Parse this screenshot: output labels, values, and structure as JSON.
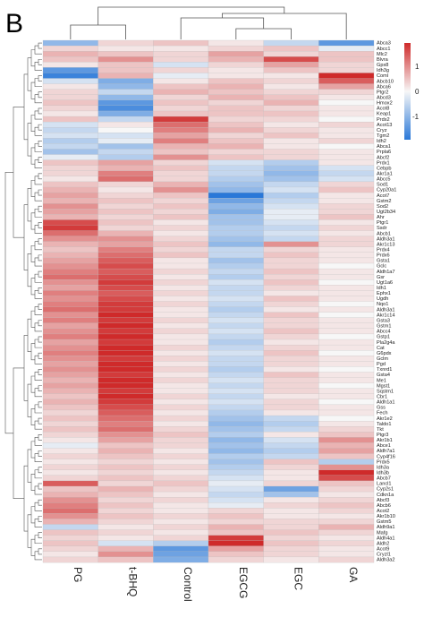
{
  "panel_label": "B",
  "colors": {
    "low": "#2a78d8",
    "mid": "#f7f7f7",
    "high": "#cf2a2a"
  },
  "chart_data": {
    "type": "heatmap",
    "title": "",
    "columns": [
      "PG",
      "t-BHQ",
      "Control",
      "EGCG",
      "EGC",
      "GA"
    ],
    "rows": [
      "Abca3",
      "Abcc1",
      "Mlc2",
      "Blvra",
      "Gpx8",
      "Idh3g",
      "Coml",
      "Abcb10",
      "Abca6",
      "Ptgr2",
      "Abcd3",
      "Hmox2",
      "Acot8",
      "Keap1",
      "Prdx2",
      "Acot13",
      "Cryz",
      "Tgm2",
      "Idh2",
      "Abca1",
      "Prpla6",
      "Abcf2",
      "Prdx1",
      "Cebpb",
      "Akr1a1",
      "Abcc5",
      "Sod1",
      "Cyp20a1",
      "Acot7",
      "Gstm2",
      "Sod2",
      "Ugt2b34",
      "Ahr",
      "Ptgr1",
      "Ssdr",
      "Abcb1",
      "Aldh3a1",
      "Akr1c13",
      "Prdx4",
      "Prdx6",
      "Gsta1",
      "Gclc",
      "Aldh1a7",
      "Gsr",
      "Ugt1a6",
      "Idh1",
      "Ephx1",
      "Ugdh",
      "Nqo1",
      "Aldh3a1",
      "Akr1c14",
      "Gsta3",
      "Gstm1",
      "Abcc4",
      "Gstp1",
      "Pla2g4a",
      "Cat",
      "G6pdx",
      "Gclm",
      "Pgd",
      "Txnrd1",
      "Gsta4",
      "Me1",
      "Mgst1",
      "Sqstm1",
      "Cbr1",
      "Aldh1a1",
      "Gss",
      "Fech",
      "Akr1e2",
      "Taldo1",
      "Tkt",
      "Ptgr3",
      "Akr1b1",
      "Abce1",
      "Aldh7a1",
      "Cyp4f16",
      "Prdx5",
      "Idh3a",
      "Idh3b",
      "Abcb7",
      "Lancl1",
      "Cyp2s1",
      "Cdkn1a",
      "Abcf3",
      "Abcb6",
      "Acot2",
      "Akr1b10",
      "Gstm5",
      "Aldh9a1",
      "Mafg",
      "Aldh4a1",
      "Aldh2",
      "Acot9",
      "Cryzl1",
      "Aldh3a2"
    ],
    "values": [
      [
        -0.6,
        0.2,
        0.3,
        0.1,
        -0.3,
        -0.9
      ],
      [
        0.2,
        0.1,
        0.1,
        0.2,
        0.3,
        -0.1
      ],
      [
        0.4,
        0.3,
        0.2,
        0.5,
        0.2,
        0.3
      ],
      [
        0.3,
        0.6,
        0.2,
        0.4,
        1.0,
        0.3
      ],
      [
        0.1,
        0.3,
        -0.2,
        0.2,
        0.5,
        0.2
      ],
      [
        -0.9,
        0.3,
        0.2,
        0.1,
        0.3,
        0.2
      ],
      [
        -1.1,
        0.4,
        -0.1,
        0.1,
        0.1,
        1.2
      ],
      [
        -0.2,
        -0.7,
        0.1,
        0.3,
        0.2,
        0.9
      ],
      [
        0.1,
        -0.6,
        0.3,
        0.4,
        0.1,
        0.5
      ],
      [
        0.2,
        -0.3,
        0.4,
        0.3,
        0.2,
        0.2
      ],
      [
        0.2,
        -0.6,
        0.2,
        0.4,
        0.3,
        0.1
      ],
      [
        0.3,
        -0.9,
        0.3,
        0.2,
        0.4,
        0.0
      ],
      [
        0.2,
        -1.0,
        0.2,
        0.3,
        0.2,
        0.1
      ],
      [
        0.1,
        -0.7,
        0.3,
        0.3,
        0.3,
        0.1
      ],
      [
        0.3,
        -0.3,
        1.1,
        0.2,
        0.2,
        0.0
      ],
      [
        -0.2,
        0.1,
        0.8,
        0.3,
        0.1,
        0.2
      ],
      [
        -0.3,
        0.0,
        0.7,
        0.4,
        0.2,
        0.1
      ],
      [
        -0.2,
        -0.2,
        0.5,
        0.2,
        0.3,
        0.1
      ],
      [
        -0.4,
        -0.1,
        0.7,
        0.3,
        0.1,
        0.2
      ],
      [
        -0.3,
        -0.5,
        0.4,
        0.4,
        0.1,
        0.0
      ],
      [
        -0.5,
        -0.3,
        0.3,
        0.2,
        0.2,
        0.1
      ],
      [
        -0.1,
        -0.4,
        0.6,
        0.3,
        0.2,
        0.1
      ],
      [
        0.3,
        0.5,
        0.2,
        -0.2,
        -0.4,
        0.1
      ],
      [
        0.2,
        0.4,
        0.3,
        -0.3,
        -0.5,
        -0.2
      ],
      [
        0.2,
        0.7,
        0.2,
        -0.3,
        -0.6,
        -0.3
      ],
      [
        0.1,
        0.8,
        0.2,
        -0.4,
        -0.5,
        -0.2
      ],
      [
        0.3,
        0.2,
        0.4,
        -0.5,
        -0.3,
        0.2
      ],
      [
        0.4,
        0.1,
        0.6,
        -0.6,
        -0.2,
        0.3
      ],
      [
        0.5,
        0.2,
        0.3,
        -1.2,
        -0.4,
        0.1
      ],
      [
        0.4,
        0.3,
        0.2,
        -0.8,
        -0.3,
        0.1
      ],
      [
        0.6,
        0.2,
        0.3,
        -0.6,
        -0.2,
        0.2
      ],
      [
        0.5,
        0.3,
        0.2,
        -0.7,
        -0.1,
        0.2
      ],
      [
        0.4,
        0.2,
        0.3,
        -0.5,
        -0.1,
        0.3
      ],
      [
        1.0,
        0.3,
        0.1,
        -0.5,
        -0.2,
        0.1
      ],
      [
        1.1,
        0.2,
        0.2,
        -0.4,
        -0.3,
        0.2
      ],
      [
        0.8,
        0.4,
        0.1,
        -0.4,
        -0.2,
        0.1
      ],
      [
        0.6,
        0.6,
        0.2,
        -0.5,
        -0.3,
        0.2
      ],
      [
        0.4,
        0.5,
        0.3,
        -0.6,
        0.6,
        0.2
      ],
      [
        0.3,
        0.7,
        0.2,
        -0.3,
        0.2,
        0.1
      ],
      [
        0.4,
        0.8,
        0.3,
        -0.3,
        0.3,
        0.1
      ],
      [
        0.5,
        0.9,
        0.1,
        -0.5,
        0.2,
        0.1
      ],
      [
        0.6,
        1.0,
        0.1,
        -0.4,
        0.2,
        0.0
      ],
      [
        0.7,
        0.9,
        0.2,
        -0.3,
        0.3,
        0.1
      ],
      [
        0.8,
        1.0,
        0.1,
        -0.4,
        0.2,
        0.1
      ],
      [
        0.6,
        1.1,
        0.2,
        -0.2,
        0.3,
        0.0
      ],
      [
        0.5,
        1.0,
        0.1,
        -0.3,
        0.2,
        0.1
      ],
      [
        0.7,
        0.9,
        0.2,
        -0.3,
        0.1,
        0.1
      ],
      [
        0.6,
        1.0,
        0.1,
        -0.2,
        0.3,
        0.1
      ],
      [
        0.7,
        1.1,
        0.2,
        -0.3,
        0.2,
        0.0
      ],
      [
        0.8,
        1.1,
        0.1,
        -0.4,
        0.1,
        0.1
      ],
      [
        0.6,
        1.2,
        0.1,
        -0.3,
        0.3,
        0.0
      ],
      [
        0.7,
        1.1,
        0.2,
        -0.2,
        0.2,
        0.1
      ],
      [
        0.5,
        1.2,
        0.1,
        -0.3,
        0.2,
        0.1
      ],
      [
        0.6,
        1.1,
        0.2,
        -0.2,
        0.3,
        0.1
      ],
      [
        0.7,
        1.2,
        0.1,
        -0.3,
        0.2,
        0.0
      ],
      [
        0.5,
        1.1,
        0.1,
        -0.4,
        0.1,
        0.1
      ],
      [
        0.6,
        1.2,
        0.2,
        -0.3,
        0.2,
        0.1
      ],
      [
        0.7,
        1.2,
        0.1,
        -0.2,
        0.3,
        0.0
      ],
      [
        0.6,
        1.1,
        0.2,
        -0.3,
        0.2,
        0.1
      ],
      [
        0.5,
        1.2,
        0.1,
        -0.3,
        0.2,
        0.1
      ],
      [
        0.6,
        1.2,
        0.2,
        -0.4,
        0.1,
        0.0
      ],
      [
        0.5,
        1.1,
        0.1,
        -0.3,
        0.3,
        0.1
      ],
      [
        0.4,
        1.2,
        0.2,
        -0.2,
        0.2,
        0.1
      ],
      [
        0.5,
        1.2,
        0.1,
        -0.3,
        0.2,
        0.0
      ],
      [
        0.4,
        1.1,
        0.1,
        -0.2,
        0.2,
        0.1
      ],
      [
        0.3,
        1.2,
        0.2,
        -0.3,
        0.1,
        0.1
      ],
      [
        0.4,
        1.1,
        0.1,
        -0.2,
        0.2,
        0.0
      ],
      [
        0.3,
        1.0,
        0.2,
        -0.3,
        0.2,
        0.1
      ],
      [
        0.2,
        0.9,
        0.1,
        -0.4,
        0.1,
        0.1
      ],
      [
        0.3,
        0.8,
        0.2,
        -0.5,
        -0.3,
        0.0
      ],
      [
        0.2,
        0.7,
        0.1,
        -0.6,
        -0.4,
        0.1
      ],
      [
        0.3,
        0.8,
        0.2,
        -0.5,
        -0.3,
        0.2
      ],
      [
        0.2,
        0.6,
        0.3,
        -0.4,
        0.1,
        0.3
      ],
      [
        0.1,
        0.5,
        0.2,
        -0.6,
        -0.2,
        0.6
      ],
      [
        -0.1,
        0.3,
        0.2,
        -0.5,
        -0.3,
        0.4
      ],
      [
        0.1,
        0.4,
        0.1,
        -0.6,
        -0.4,
        0.5
      ],
      [
        0.2,
        0.3,
        0.2,
        -0.4,
        -0.3,
        0.3
      ],
      [
        0.1,
        0.2,
        0.1,
        -0.5,
        0.3,
        -0.4
      ],
      [
        0.2,
        0.3,
        0.2,
        -0.4,
        0.2,
        0.6
      ],
      [
        0.1,
        0.2,
        0.1,
        -0.3,
        0.1,
        1.2
      ],
      [
        0.2,
        0.3,
        0.2,
        -0.2,
        0.1,
        1.0
      ],
      [
        0.9,
        0.2,
        0.3,
        -0.1,
        0.2,
        0.3
      ],
      [
        0.3,
        0.4,
        0.2,
        -0.2,
        -0.8,
        0.2
      ],
      [
        0.4,
        0.3,
        0.1,
        -0.3,
        -0.5,
        0.1
      ],
      [
        0.6,
        0.2,
        0.2,
        -0.2,
        0.1,
        0.2
      ],
      [
        0.7,
        0.3,
        0.1,
        -0.1,
        0.2,
        0.3
      ],
      [
        0.8,
        0.2,
        0.1,
        0.2,
        0.1,
        0.2
      ],
      [
        0.6,
        0.3,
        0.2,
        0.3,
        0.1,
        0.1
      ],
      [
        0.4,
        0.2,
        0.1,
        0.2,
        0.2,
        0.2
      ],
      [
        -0.3,
        0.1,
        0.2,
        0.4,
        0.2,
        0.4
      ],
      [
        0.3,
        0.2,
        0.1,
        0.3,
        0.3,
        0.2
      ],
      [
        0.2,
        0.1,
        0.2,
        1.1,
        0.2,
        0.1
      ],
      [
        0.3,
        -0.2,
        -0.4,
        1.2,
        0.3,
        0.2
      ],
      [
        0.2,
        0.4,
        -0.9,
        0.5,
        0.2,
        0.1
      ],
      [
        0.1,
        0.6,
        -0.8,
        0.3,
        0.2,
        0.1
      ],
      [
        0.2,
        0.3,
        -0.7,
        0.2,
        0.1,
        0.2
      ]
    ],
    "color_scale": {
      "min": -1.2,
      "max": 1.2,
      "ticks": [
        "1",
        "0",
        "-1"
      ]
    },
    "legend": "top-right"
  }
}
